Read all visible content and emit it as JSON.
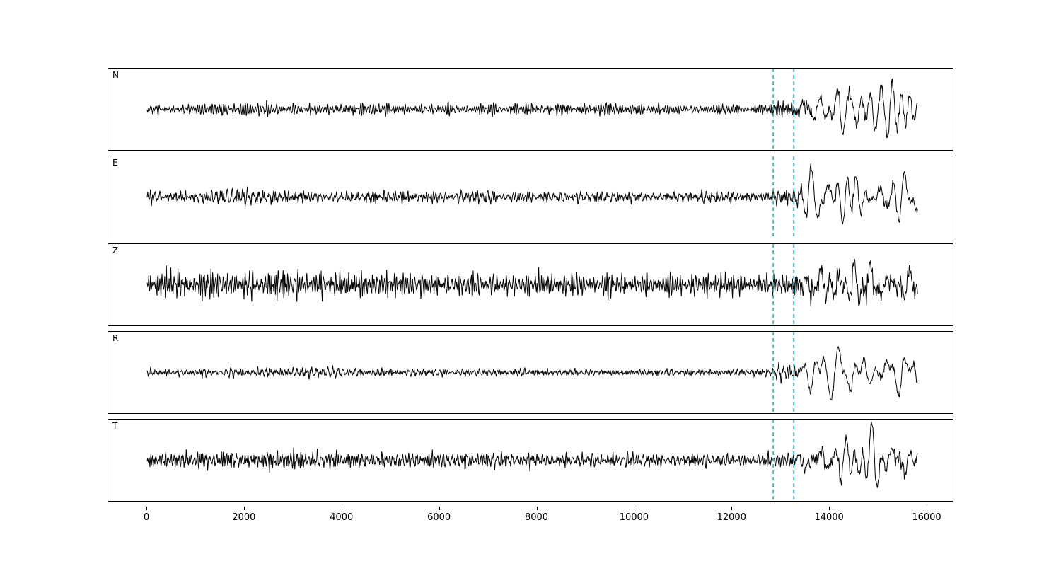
{
  "figure": {
    "background": "#ffffff",
    "title": ""
  },
  "chart_data": {
    "type": "line",
    "title": "",
    "xlabel": "",
    "ylabel": "",
    "grid": false,
    "legend": null,
    "x_range": [
      0,
      16600
    ],
    "x_data_start": 0,
    "x_data_end": 15800,
    "x_ticks": [
      0,
      2000,
      4000,
      6000,
      8000,
      10000,
      12000,
      14000,
      16000
    ],
    "x_tick_labels": [
      "0",
      "2000",
      "4000",
      "6000",
      "8000",
      "10000",
      "12000",
      "14000",
      "16000"
    ],
    "trace_color": "#000000",
    "vlines": {
      "positions": [
        12840,
        13260
      ],
      "color": "#17becf",
      "style": "dashed",
      "description": "two cyan dashed pick lines spanning all panels"
    },
    "amplitude_units": "relative (peak amplitude envelope, interpolated linearly between [x, amp] breakpoints)",
    "panels": [
      {
        "label": "N",
        "seed": 11,
        "noise_envelope": [
          [
            0,
            7
          ],
          [
            1500,
            9
          ],
          [
            2600,
            11
          ],
          [
            3000,
            8
          ],
          [
            6000,
            8
          ],
          [
            9500,
            9
          ],
          [
            12800,
            8
          ],
          [
            12950,
            15
          ],
          [
            13250,
            13
          ],
          [
            13420,
            9
          ],
          [
            15800,
            9
          ]
        ],
        "event_envelope": [
          [
            13280,
            0
          ],
          [
            13450,
            26
          ],
          [
            14000,
            30
          ],
          [
            14400,
            36
          ],
          [
            14700,
            30
          ],
          [
            15200,
            44
          ],
          [
            15500,
            34
          ],
          [
            15800,
            26
          ]
        ]
      },
      {
        "label": "E",
        "seed": 23,
        "noise_envelope": [
          [
            0,
            8
          ],
          [
            1800,
            12
          ],
          [
            2300,
            12
          ],
          [
            3500,
            9
          ],
          [
            8000,
            8
          ],
          [
            12800,
            8
          ],
          [
            12950,
            14
          ],
          [
            13250,
            12
          ],
          [
            13420,
            8
          ],
          [
            15800,
            8
          ]
        ],
        "event_envelope": [
          [
            13280,
            0
          ],
          [
            13500,
            30
          ],
          [
            14100,
            36
          ],
          [
            14500,
            42
          ],
          [
            15000,
            30
          ],
          [
            15400,
            38
          ],
          [
            15800,
            26
          ]
        ]
      },
      {
        "label": "Z",
        "seed": 37,
        "noise_envelope": [
          [
            0,
            18
          ],
          [
            400,
            26
          ],
          [
            1200,
            24
          ],
          [
            2500,
            24
          ],
          [
            4000,
            20
          ],
          [
            7000,
            17
          ],
          [
            10000,
            16
          ],
          [
            12800,
            15
          ],
          [
            13000,
            18
          ],
          [
            13400,
            16
          ],
          [
            15800,
            13
          ]
        ],
        "event_envelope": [
          [
            13280,
            0
          ],
          [
            13600,
            22
          ],
          [
            14200,
            20
          ],
          [
            14700,
            42
          ],
          [
            15100,
            30
          ],
          [
            15500,
            22
          ],
          [
            15800,
            20
          ]
        ]
      },
      {
        "label": "R",
        "seed": 51,
        "noise_envelope": [
          [
            0,
            5
          ],
          [
            2000,
            7
          ],
          [
            3500,
            8
          ],
          [
            5000,
            6
          ],
          [
            8000,
            5
          ],
          [
            12800,
            5
          ],
          [
            12950,
            14
          ],
          [
            13250,
            12
          ],
          [
            13420,
            6
          ],
          [
            15800,
            6
          ]
        ],
        "event_envelope": [
          [
            13280,
            0
          ],
          [
            13500,
            28
          ],
          [
            14000,
            30
          ],
          [
            14500,
            34
          ],
          [
            14800,
            26
          ],
          [
            15300,
            42
          ],
          [
            15600,
            30
          ],
          [
            15800,
            24
          ]
        ]
      },
      {
        "label": "T",
        "seed": 67,
        "noise_envelope": [
          [
            0,
            11
          ],
          [
            1500,
            14
          ],
          [
            2500,
            15
          ],
          [
            4000,
            12
          ],
          [
            7000,
            11
          ],
          [
            10000,
            10
          ],
          [
            12800,
            9
          ],
          [
            12950,
            14
          ],
          [
            13250,
            12
          ],
          [
            13420,
            10
          ],
          [
            15800,
            10
          ]
        ],
        "event_envelope": [
          [
            13280,
            0
          ],
          [
            13500,
            30
          ],
          [
            14000,
            34
          ],
          [
            14300,
            26
          ],
          [
            14800,
            40
          ],
          [
            15300,
            34
          ],
          [
            15800,
            28
          ]
        ]
      }
    ]
  }
}
